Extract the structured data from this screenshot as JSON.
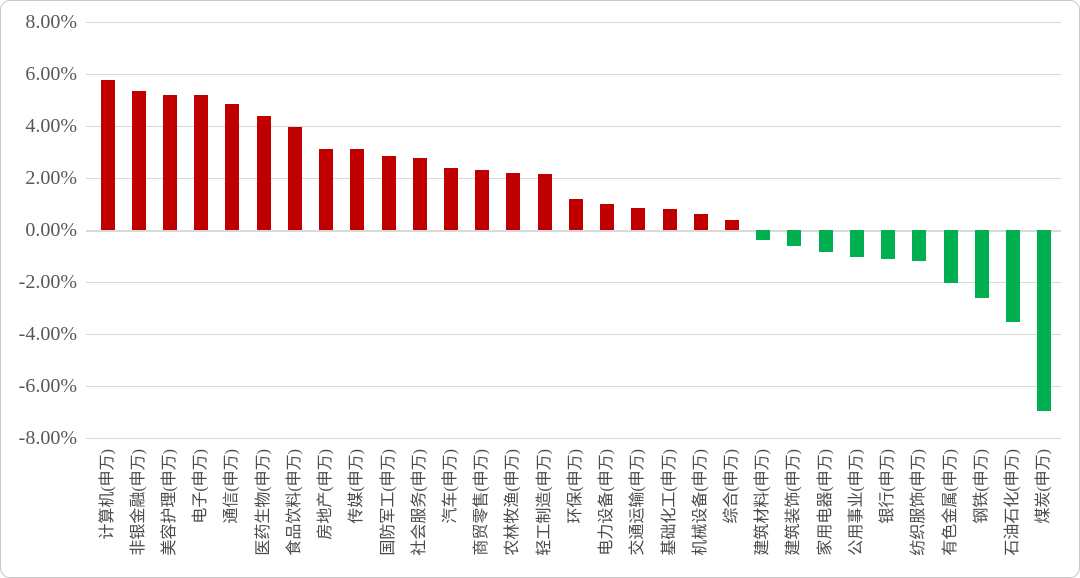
{
  "chart_data": {
    "type": "bar",
    "title": "",
    "xlabel": "",
    "ylabel": "",
    "legend": "none",
    "grid": true,
    "ylim": [
      -8,
      8
    ],
    "y_ticks": [
      "8.00%",
      "6.00%",
      "4.00%",
      "2.00%",
      "0.00%",
      "-2.00%",
      "-4.00%",
      "-6.00%",
      "-8.00%"
    ],
    "categories": [
      "计算机(申万)",
      "非银金融(申万)",
      "美容护理(申万)",
      "电子(申万)",
      "通信(申万)",
      "医药生物(申万)",
      "食品饮料(申万)",
      "房地产(申万)",
      "传媒(申万)",
      "国防军工(申万)",
      "社会服务(申万)",
      "汽车(申万)",
      "商贸零售(申万)",
      "农林牧渔(申万)",
      "轻工制造(申万)",
      "环保(申万)",
      "电力设备(申万)",
      "交通运输(申万)",
      "基础化工(申万)",
      "机械设备(申万)",
      "综合(申万)",
      "建筑材料(申万)",
      "建筑装饰(申万)",
      "家用电器(申万)",
      "公用事业(申万)",
      "银行(申万)",
      "纺织服饰(申万)",
      "有色金属(申万)",
      "钢铁(申万)",
      "石油石化(申万)",
      "煤炭(申万)"
    ],
    "values": [
      5.75,
      5.35,
      5.2,
      5.2,
      4.85,
      4.4,
      3.95,
      3.1,
      3.1,
      2.85,
      2.75,
      2.4,
      2.3,
      2.2,
      2.15,
      1.2,
      1.0,
      0.85,
      0.8,
      0.6,
      0.4,
      -0.4,
      -0.6,
      -0.85,
      -1.05,
      -1.1,
      -1.2,
      -2.05,
      -2.6,
      -3.55,
      -6.95
    ],
    "colors": {
      "positive": "#C00000",
      "negative": "#00B050",
      "gridline": "#D9D9D9",
      "axis_text": "#595959",
      "category_text": "#4A4A4A",
      "background": "#FFFFFF"
    }
  }
}
